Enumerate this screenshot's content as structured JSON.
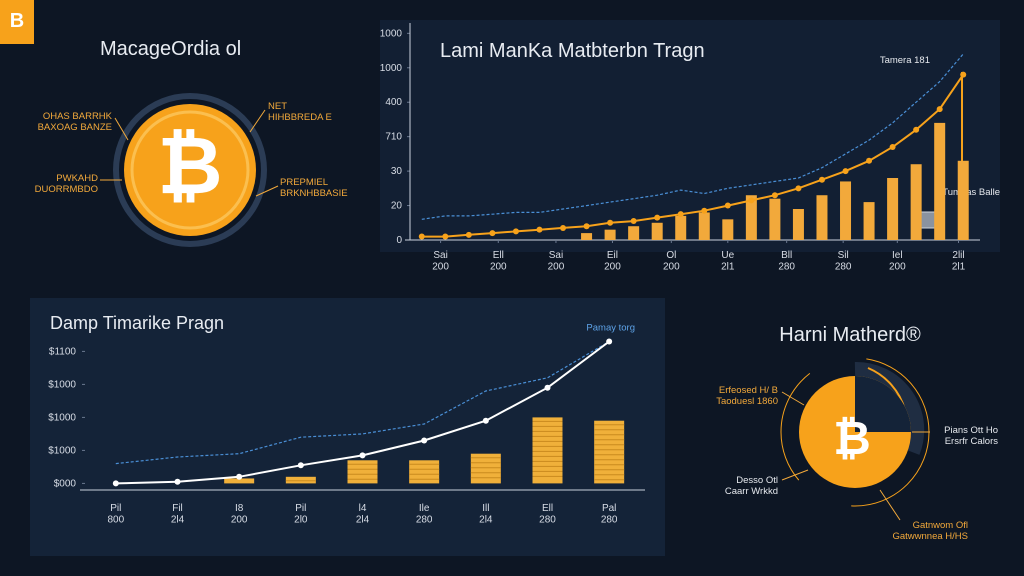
{
  "header": {
    "logo": "B",
    "title": "MacageOrdia ol"
  },
  "coin_labels": [
    "OHAS BARRHK\nBAXOAG BANZE",
    "NET\nHIHBBREDA E",
    "PWKAHD\nDUORRMBDO",
    "PREPMIEL\nBRKNHBBASIE"
  ],
  "chart_data": [
    {
      "type": "bar",
      "title": "Lami ManKa Matbterbn Tragn",
      "annotations": [
        "Tamera 181",
        "Tumbas Balle"
      ],
      "x": [
        0.5,
        1.5,
        2.5,
        3.5,
        4.5,
        5.5,
        6.5,
        7.5,
        8.5,
        9.5,
        10.5,
        11.5,
        12.5,
        13.5,
        14.5,
        15.5,
        16.5,
        17.5,
        18.5,
        19.5,
        20.5,
        21.5,
        22.5,
        23.5
      ],
      "xlim": [
        0,
        24
      ],
      "xticks": [
        {
          "value": 1.3,
          "label": "Sai\n200"
        },
        {
          "value": 3.75,
          "label": "Ell\n200"
        },
        {
          "value": 6.2,
          "label": "Sai\n200"
        },
        {
          "value": 8.6,
          "label": "Eil\n200"
        },
        {
          "value": 11.1,
          "label": "Ol\n200"
        },
        {
          "value": 13.5,
          "label": "Ue\n2l1"
        },
        {
          "value": 16,
          "label": "Bll\n280"
        },
        {
          "value": 18.4,
          "label": "Sil\n280"
        },
        {
          "value": 20.7,
          "label": "Iel\n200"
        },
        {
          "value": 23.3,
          "label": "2lil\n2l1"
        }
      ],
      "ylim": [
        0,
        6.3
      ],
      "yticks": [
        0,
        {
          "value": 1,
          "label": "20"
        },
        {
          "value": 2,
          "label": "30"
        },
        {
          "value": 3,
          "label": "710"
        },
        {
          "value": 4,
          "label": "400"
        },
        {
          "value": 5,
          "label": "1000"
        },
        {
          "value": 6,
          "label": "1000"
        }
      ],
      "series": [
        {
          "type": "bar",
          "color": "#f2a93b",
          "values": [
            null,
            null,
            null,
            null,
            null,
            null,
            null,
            0.2,
            0.3,
            0.4,
            0.5,
            0.7,
            0.8,
            0.6,
            1.3,
            1.2,
            0.9,
            1.3,
            1.7,
            1.1,
            1.8,
            2.2,
            3.4,
            2.3
          ]
        },
        {
          "type": "line",
          "color": "#4a8fd6",
          "dash": true,
          "values": [
            0.6,
            0.7,
            0.7,
            0.75,
            0.8,
            0.8,
            0.9,
            1.0,
            1.1,
            1.2,
            1.3,
            1.45,
            1.35,
            1.5,
            1.6,
            1.7,
            1.8,
            2.1,
            2.5,
            2.9,
            3.4,
            4.0,
            4.6,
            5.4
          ]
        },
        {
          "type": "line",
          "color": "#f7a21b",
          "markers": true,
          "values": [
            0.1,
            0.1,
            0.15,
            0.2,
            0.25,
            0.3,
            0.35,
            0.4,
            0.5,
            0.55,
            0.65,
            0.75,
            0.85,
            1.0,
            1.15,
            1.3,
            1.5,
            1.75,
            2.0,
            2.3,
            2.7,
            3.2,
            3.8,
            4.8
          ]
        }
      ]
    },
    {
      "type": "bar",
      "title": "Damp Timarike Pragn",
      "categories": [
        "Pil\n800",
        "Fil\n2l4",
        "I8\n200",
        "Pil\n2l0",
        "l4\n2l4",
        "Ile\n280",
        "Ill\n2l4",
        "Ell\n280",
        "Pal\n280"
      ],
      "ylim": [
        -0.2,
        4.3
      ],
      "yticks": [
        {
          "value": 0,
          "label": "$000"
        },
        {
          "value": 1,
          "label": "$1000"
        },
        {
          "value": 2,
          "label": "$1000"
        },
        {
          "value": 3,
          "label": "$1000"
        },
        {
          "value": 4,
          "label": "$1100"
        }
      ],
      "legend": "top-right",
      "series": [
        {
          "type": "bar",
          "color": "#f0b03a",
          "values": [
            null,
            null,
            0.15,
            0.2,
            0.7,
            0.7,
            0.9,
            2.0,
            1.9
          ]
        },
        {
          "type": "line",
          "color": "#4a8fd6",
          "dash": true,
          "values": [
            0.6,
            0.8,
            0.9,
            1.4,
            1.5,
            1.8,
            2.8,
            3.2,
            4.3
          ]
        },
        {
          "type": "line",
          "name": "Pamay torg",
          "color": "#ffffff",
          "markers": true,
          "values": [
            0.0,
            0.05,
            0.2,
            0.55,
            0.85,
            1.3,
            1.9,
            2.9,
            4.3
          ]
        }
      ]
    }
  ],
  "badge": {
    "title": "Harni Matherd®",
    "labels": [
      "Erfeosed H/ B\nTaoduesl 1860",
      "Pians Ott Ho\nErsrfr Calors",
      "Desso Otl\nCaarr Wrkkd",
      "Gatnwom Ofl\nGatwwnnea H/HS"
    ]
  }
}
